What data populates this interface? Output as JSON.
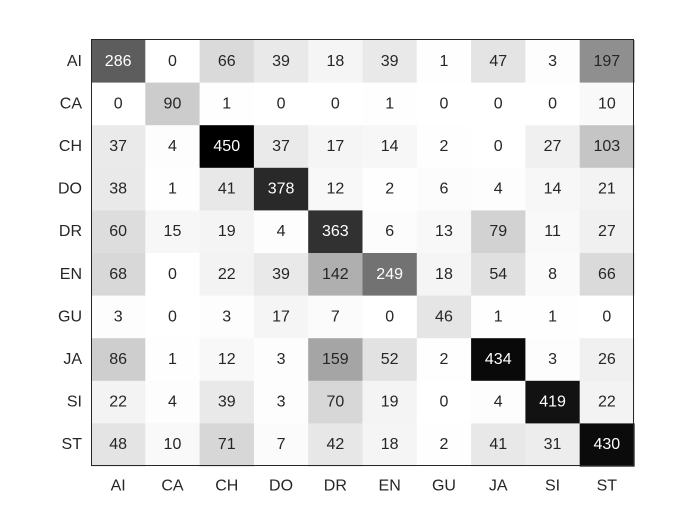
{
  "chart_data": {
    "type": "heatmap",
    "title": "",
    "xlabel": "",
    "ylabel": "",
    "colormap": "gray-reversed",
    "grid": false,
    "x_categories": [
      "AI",
      "CA",
      "CH",
      "DO",
      "DR",
      "EN",
      "GU",
      "JA",
      "SI",
      "ST"
    ],
    "y_categories": [
      "AI",
      "CA",
      "CH",
      "DO",
      "DR",
      "EN",
      "GU",
      "JA",
      "SI",
      "ST"
    ],
    "values": [
      [
        286,
        0,
        66,
        39,
        18,
        39,
        1,
        47,
        3,
        197
      ],
      [
        0,
        90,
        1,
        0,
        0,
        1,
        0,
        0,
        0,
        10
      ],
      [
        37,
        4,
        450,
        37,
        17,
        14,
        2,
        0,
        27,
        103
      ],
      [
        38,
        1,
        41,
        378,
        12,
        2,
        6,
        4,
        14,
        21
      ],
      [
        60,
        15,
        19,
        4,
        363,
        6,
        13,
        79,
        11,
        27
      ],
      [
        68,
        0,
        22,
        39,
        142,
        249,
        18,
        54,
        8,
        66
      ],
      [
        3,
        0,
        3,
        17,
        7,
        0,
        46,
        1,
        1,
        0
      ],
      [
        86,
        1,
        12,
        3,
        159,
        52,
        2,
        434,
        3,
        26
      ],
      [
        22,
        4,
        39,
        3,
        70,
        19,
        0,
        4,
        419,
        22
      ],
      [
        48,
        10,
        71,
        7,
        42,
        18,
        2,
        41,
        31,
        430
      ]
    ]
  }
}
